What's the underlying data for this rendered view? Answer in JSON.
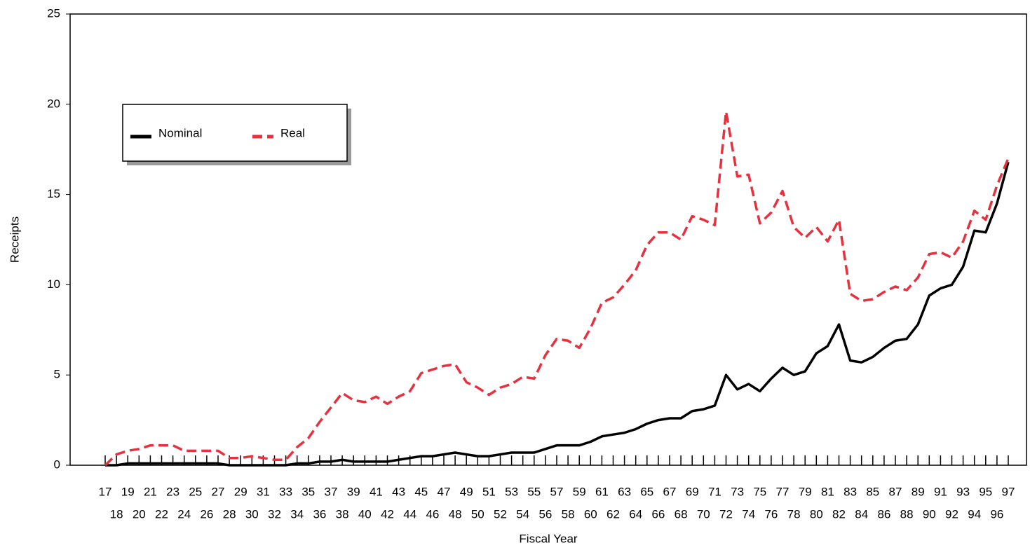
{
  "chart_data": {
    "type": "line",
    "x_label": "Fiscal Year",
    "y_label": "Receipts",
    "categories": [
      "17",
      "18",
      "19",
      "20",
      "21",
      "22",
      "23",
      "24",
      "25",
      "26",
      "27",
      "28",
      "29",
      "30",
      "31",
      "32",
      "33",
      "34",
      "35",
      "36",
      "37",
      "38",
      "39",
      "40",
      "41",
      "42",
      "43",
      "44",
      "45",
      "46",
      "47",
      "48",
      "49",
      "50",
      "51",
      "52",
      "53",
      "54",
      "55",
      "56",
      "57",
      "58",
      "59",
      "60",
      "61",
      "62",
      "63",
      "64",
      "65",
      "66",
      "67",
      "68",
      "69",
      "70",
      "71",
      "72",
      "73",
      "74",
      "75",
      "76",
      "77",
      "78",
      "79",
      "80",
      "81",
      "82",
      "83",
      "84",
      "85",
      "86",
      "87",
      "88",
      "89",
      "90",
      "91",
      "92",
      "93",
      "94",
      "95",
      "96",
      "97"
    ],
    "series": [
      {
        "name": "Nominal",
        "color": "#000000",
        "dash": false,
        "values": [
          0,
          0,
          0.1,
          0.1,
          0.1,
          0.1,
          0.1,
          0.1,
          0.1,
          0.1,
          0.1,
          0,
          0,
          0,
          0,
          0,
          0,
          0.1,
          0.1,
          0.2,
          0.2,
          0.3,
          0.2,
          0.2,
          0.2,
          0.2,
          0.3,
          0.4,
          0.5,
          0.5,
          0.6,
          0.7,
          0.6,
          0.5,
          0.5,
          0.6,
          0.7,
          0.7,
          0.7,
          0.9,
          1.1,
          1.1,
          1.1,
          1.3,
          1.6,
          1.7,
          1.8,
          2.0,
          2.3,
          2.5,
          2.6,
          2.6,
          3.0,
          3.1,
          3.3,
          5.0,
          4.2,
          4.5,
          4.1,
          4.8,
          5.4,
          5.0,
          5.2,
          6.2,
          6.6,
          7.8,
          5.8,
          5.7,
          6.0,
          6.5,
          6.9,
          7.0,
          7.8,
          9.4,
          9.8,
          10.0,
          11.0,
          13.0,
          12.9,
          14.5,
          16.8
        ]
      },
      {
        "name": "Real",
        "color": "#e8313f",
        "dash": true,
        "values": [
          0,
          0.6,
          0.8,
          0.9,
          1.1,
          1.1,
          1.1,
          0.8,
          0.8,
          0.8,
          0.8,
          0.4,
          0.4,
          0.5,
          0.4,
          0.3,
          0.3,
          1.0,
          1.5,
          2.4,
          3.2,
          4.0,
          3.6,
          3.5,
          3.8,
          3.4,
          3.8,
          4.1,
          5.1,
          5.3,
          5.5,
          5.6,
          4.6,
          4.3,
          3.9,
          4.3,
          4.5,
          4.9,
          4.8,
          6.1,
          7.0,
          6.9,
          6.5,
          7.6,
          9.0,
          9.3,
          10.0,
          10.8,
          12.2,
          12.9,
          12.9,
          12.5,
          13.8,
          13.6,
          13.3,
          19.6,
          16.0,
          16.1,
          13.4,
          14.0,
          15.2,
          13.2,
          12.6,
          13.2,
          12.4,
          13.6,
          9.5,
          9.1,
          9.2,
          9.6,
          9.9,
          9.7,
          10.4,
          11.7,
          11.8,
          11.5,
          12.4,
          14.1,
          13.6,
          15.5,
          17.0
        ]
      }
    ],
    "ylim": [
      0,
      25
    ],
    "yticks": [
      0,
      5,
      10,
      15,
      20,
      25
    ],
    "grid": false,
    "legend": "upper left"
  }
}
